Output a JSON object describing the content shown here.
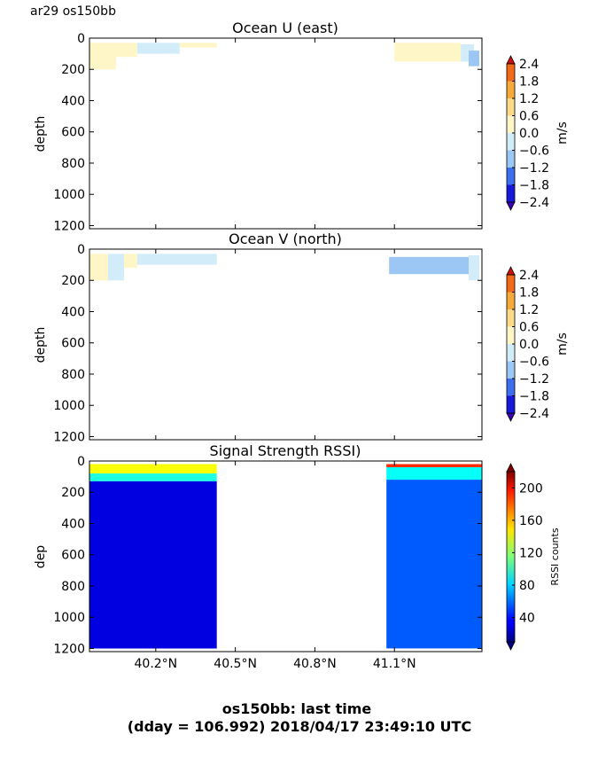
{
  "figure": {
    "corner_label": "ar29 os150bb",
    "caption_line1": "os150bb: last time",
    "caption_line2": "(dday = 106.992) 2018/04/17 23:49:10 UTC"
  },
  "chart_data": [
    {
      "type": "heatmap",
      "title": "Ocean U (east)",
      "xlabel": "",
      "ylabel": "depth",
      "xlim": [
        39.95,
        41.43
      ],
      "ylim": [
        1220,
        0
      ],
      "y_ticks": [
        "0",
        "200",
        "400",
        "600",
        "800",
        "1000",
        "1200"
      ],
      "y_tick_values": [
        0,
        200,
        400,
        600,
        800,
        1000,
        1200
      ],
      "x_tick_values": [
        40.2,
        40.5,
        40.8,
        41.1
      ],
      "x_ticks": [
        "",
        "",
        "",
        ""
      ],
      "grid": false,
      "colorbar": {
        "label": "m/s",
        "tick_labels": [
          "2.4",
          "1.8",
          "1.2",
          "0.6",
          "0.0",
          "−0.6",
          "−1.2",
          "−1.8",
          "−2.4"
        ],
        "tick_values": [
          2.4,
          1.8,
          1.2,
          0.6,
          0.0,
          -0.6,
          -1.2,
          -1.8,
          -2.4
        ],
        "colors": [
          "#cc1010",
          "#f06a18",
          "#f7a93a",
          "#fdd98a",
          "#fff6c8",
          "#d2ecfa",
          "#9cc7f5",
          "#3e6ef0",
          "#1818d8",
          "#3a00b0"
        ]
      },
      "regions": [
        {
          "x": [
            39.95,
            40.05
          ],
          "depth": [
            30,
            200
          ],
          "value": 0.1
        },
        {
          "x": [
            40.05,
            40.13
          ],
          "depth": [
            30,
            120
          ],
          "value": 0.1
        },
        {
          "x": [
            40.13,
            40.29
          ],
          "depth": [
            30,
            100
          ],
          "value": -0.2
        },
        {
          "x": [
            40.29,
            40.43
          ],
          "depth": [
            30,
            60
          ],
          "value": 0.1
        },
        {
          "x": [
            41.1,
            41.35
          ],
          "depth": [
            30,
            150
          ],
          "value": 0.1
        },
        {
          "x": [
            41.35,
            41.4
          ],
          "depth": [
            40,
            150
          ],
          "value": -0.2
        },
        {
          "x": [
            41.38,
            41.42
          ],
          "depth": [
            80,
            180
          ],
          "value": -0.8
        }
      ]
    },
    {
      "type": "heatmap",
      "title": "Ocean V (north)",
      "xlabel": "",
      "ylabel": "depth",
      "xlim": [
        39.95,
        41.43
      ],
      "ylim": [
        1220,
        0
      ],
      "y_ticks": [
        "0",
        "200",
        "400",
        "600",
        "800",
        "1000",
        "1200"
      ],
      "y_tick_values": [
        0,
        200,
        400,
        600,
        800,
        1000,
        1200
      ],
      "x_tick_values": [
        40.2,
        40.5,
        40.8,
        41.1
      ],
      "x_ticks": [
        "",
        "",
        "",
        ""
      ],
      "grid": false,
      "colorbar": {
        "label": "m/s",
        "tick_labels": [
          "2.4",
          "1.8",
          "1.2",
          "0.6",
          "0.0",
          "−0.6",
          "−1.2",
          "−1.8",
          "−2.4"
        ],
        "tick_values": [
          2.4,
          1.8,
          1.2,
          0.6,
          0.0,
          -0.6,
          -1.2,
          -1.8,
          -2.4
        ],
        "colors": [
          "#cc1010",
          "#f06a18",
          "#f7a93a",
          "#fdd98a",
          "#fff6c8",
          "#d2ecfa",
          "#9cc7f5",
          "#3e6ef0",
          "#1818d8",
          "#3a00b0"
        ]
      },
      "regions": [
        {
          "x": [
            39.95,
            40.02
          ],
          "depth": [
            30,
            200
          ],
          "value": 0.1
        },
        {
          "x": [
            40.02,
            40.08
          ],
          "depth": [
            30,
            200
          ],
          "value": -0.2
        },
        {
          "x": [
            40.08,
            40.13
          ],
          "depth": [
            30,
            120
          ],
          "value": 0.1
        },
        {
          "x": [
            40.13,
            40.43
          ],
          "depth": [
            30,
            100
          ],
          "value": -0.2
        },
        {
          "x": [
            41.08,
            41.38
          ],
          "depth": [
            50,
            160
          ],
          "value": -1.0
        },
        {
          "x": [
            41.38,
            41.42
          ],
          "depth": [
            40,
            200
          ],
          "value": -0.2
        }
      ]
    },
    {
      "type": "heatmap",
      "title": "Signal Strength RSSI)",
      "xlabel": "",
      "ylabel": "dep",
      "xlim": [
        39.95,
        41.43
      ],
      "ylim": [
        1220,
        0
      ],
      "y_ticks": [
        "0",
        "200",
        "400",
        "600",
        "800",
        "1000",
        "1200"
      ],
      "y_tick_values": [
        0,
        200,
        400,
        600,
        800,
        1000,
        1200
      ],
      "x_tick_values": [
        40.2,
        40.5,
        40.8,
        41.1
      ],
      "x_ticks": [
        "40.2°N",
        "40.5°N",
        "40.8°N",
        "41.1°N"
      ],
      "grid": false,
      "colorbar": {
        "label": "RSSI counts",
        "tick_labels": [
          "200",
          "160",
          "120",
          "80",
          "40"
        ],
        "tick_values": [
          200,
          160,
          120,
          80,
          40
        ],
        "range": [
          10,
          220
        ]
      },
      "regions": [
        {
          "x": [
            39.95,
            40.43
          ],
          "depth": [
            20,
            80
          ],
          "value": 140
        },
        {
          "x": [
            39.95,
            40.43
          ],
          "depth": [
            80,
            130
          ],
          "value": 95
        },
        {
          "x": [
            39.95,
            40.43
          ],
          "depth": [
            130,
            1200
          ],
          "value": 30
        },
        {
          "x": [
            41.07,
            41.43
          ],
          "depth": [
            20,
            40
          ],
          "value": 185
        },
        {
          "x": [
            41.07,
            41.43
          ],
          "depth": [
            40,
            120
          ],
          "value": 90
        },
        {
          "x": [
            41.07,
            41.43
          ],
          "depth": [
            120,
            1200
          ],
          "value": 55
        }
      ]
    }
  ]
}
